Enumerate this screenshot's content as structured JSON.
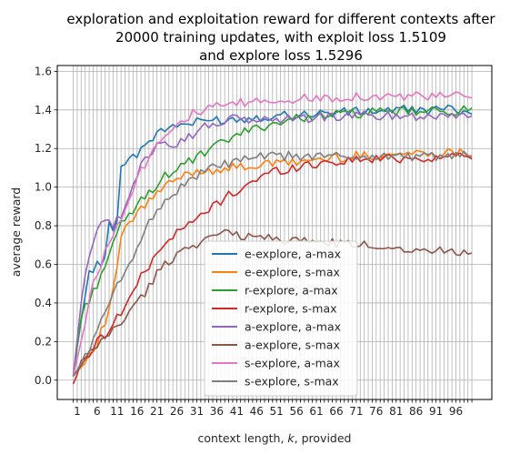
{
  "chart_data": {
    "type": "line",
    "title_lines": [
      "exploration and exploitation reward for different contexts after",
      "20000 training updates, with exploit loss 1.5109",
      "and explore loss 1.5296"
    ],
    "xlabel": "context length, k, provided",
    "ylabel": "average reward",
    "xlim": [
      -4,
      105
    ],
    "ylim": [
      -0.1,
      1.63
    ],
    "x_ticks": [
      "1",
      "6",
      "11",
      "16",
      "21",
      "26",
      "31",
      "36",
      "41",
      "46",
      "51",
      "56",
      "61",
      "66",
      "71",
      "76",
      "81",
      "86",
      "91",
      "96"
    ],
    "y_ticks": [
      "0.0",
      "0.2",
      "0.4",
      "0.6",
      "0.8",
      "1.0",
      "1.2",
      "1.4",
      "1.6"
    ],
    "grid": true,
    "legend_position": "lower center",
    "series_anchors_note": "x 0..100, values interpolated between anchors",
    "series": [
      {
        "name": "e-explore, a-max",
        "color": "#1f77b4",
        "anchors": [
          [
            0,
            0.02
          ],
          [
            2,
            0.33
          ],
          [
            4,
            0.55
          ],
          [
            6,
            0.6
          ],
          [
            8,
            0.62
          ],
          [
            9,
            0.83
          ],
          [
            10,
            0.76
          ],
          [
            11,
            0.85
          ],
          [
            12,
            1.12
          ],
          [
            13,
            1.11
          ],
          [
            14,
            1.15
          ],
          [
            15,
            1.19
          ],
          [
            16,
            1.16
          ],
          [
            17,
            1.2
          ],
          [
            20,
            1.26
          ],
          [
            25,
            1.32
          ],
          [
            30,
            1.33
          ],
          [
            35,
            1.35
          ],
          [
            40,
            1.35
          ],
          [
            50,
            1.37
          ],
          [
            60,
            1.38
          ],
          [
            70,
            1.39
          ],
          [
            80,
            1.4
          ],
          [
            90,
            1.4
          ],
          [
            100,
            1.4
          ]
        ]
      },
      {
        "name": "e-explore, s-max",
        "color": "#ff7f0e",
        "anchors": [
          [
            0,
            0.02
          ],
          [
            3,
            0.1
          ],
          [
            6,
            0.2
          ],
          [
            8,
            0.3
          ],
          [
            10,
            0.45
          ],
          [
            11,
            0.6
          ],
          [
            12,
            0.74
          ],
          [
            14,
            0.8
          ],
          [
            16,
            0.87
          ],
          [
            18,
            0.9
          ],
          [
            20,
            0.95
          ],
          [
            23,
            1.0
          ],
          [
            26,
            1.04
          ],
          [
            30,
            1.08
          ],
          [
            35,
            1.09
          ],
          [
            40,
            1.1
          ],
          [
            50,
            1.12
          ],
          [
            60,
            1.14
          ],
          [
            70,
            1.16
          ],
          [
            80,
            1.17
          ],
          [
            90,
            1.18
          ],
          [
            100,
            1.18
          ]
        ]
      },
      {
        "name": "r-explore, a-max",
        "color": "#2ca02c",
        "anchors": [
          [
            0,
            0.02
          ],
          [
            2,
            0.33
          ],
          [
            4,
            0.42
          ],
          [
            6,
            0.5
          ],
          [
            8,
            0.6
          ],
          [
            10,
            0.7
          ],
          [
            12,
            0.8
          ],
          [
            15,
            0.88
          ],
          [
            18,
            0.95
          ],
          [
            22,
            1.04
          ],
          [
            26,
            1.1
          ],
          [
            30,
            1.14
          ],
          [
            35,
            1.2
          ],
          [
            40,
            1.26
          ],
          [
            45,
            1.3
          ],
          [
            50,
            1.33
          ],
          [
            60,
            1.37
          ],
          [
            70,
            1.38
          ],
          [
            80,
            1.39
          ],
          [
            90,
            1.39
          ],
          [
            100,
            1.4
          ]
        ]
      },
      {
        "name": "r-explore, s-max",
        "color": "#d62728",
        "anchors": [
          [
            0,
            -0.02
          ],
          [
            2,
            0.08
          ],
          [
            4,
            0.14
          ],
          [
            6,
            0.2
          ],
          [
            8,
            0.24
          ],
          [
            10,
            0.3
          ],
          [
            12,
            0.35
          ],
          [
            14,
            0.42
          ],
          [
            16,
            0.5
          ],
          [
            18,
            0.56
          ],
          [
            20,
            0.62
          ],
          [
            22,
            0.7
          ],
          [
            26,
            0.76
          ],
          [
            30,
            0.82
          ],
          [
            35,
            0.9
          ],
          [
            40,
            0.97
          ],
          [
            45,
            1.03
          ],
          [
            50,
            1.08
          ],
          [
            55,
            1.1
          ],
          [
            60,
            1.12
          ],
          [
            70,
            1.14
          ],
          [
            80,
            1.15
          ],
          [
            90,
            1.15
          ],
          [
            100,
            1.17
          ]
        ]
      },
      {
        "name": "a-explore, a-max",
        "color": "#9467bd",
        "anchors": [
          [
            0,
            0.02
          ],
          [
            2,
            0.4
          ],
          [
            4,
            0.65
          ],
          [
            6,
            0.8
          ],
          [
            8,
            0.85
          ],
          [
            10,
            0.8
          ],
          [
            12,
            0.85
          ],
          [
            14,
            0.95
          ],
          [
            16,
            1.05
          ],
          [
            18,
            1.15
          ],
          [
            20,
            1.2
          ],
          [
            22,
            1.25
          ],
          [
            25,
            1.22
          ],
          [
            28,
            1.25
          ],
          [
            32,
            1.3
          ],
          [
            35,
            1.33
          ],
          [
            40,
            1.35
          ],
          [
            50,
            1.35
          ],
          [
            60,
            1.36
          ],
          [
            70,
            1.37
          ],
          [
            80,
            1.37
          ],
          [
            90,
            1.37
          ],
          [
            100,
            1.38
          ]
        ]
      },
      {
        "name": "a-explore, s-max",
        "color": "#8c564b",
        "anchors": [
          [
            0,
            0.02
          ],
          [
            3,
            0.1
          ],
          [
            6,
            0.18
          ],
          [
            9,
            0.24
          ],
          [
            12,
            0.3
          ],
          [
            15,
            0.38
          ],
          [
            18,
            0.45
          ],
          [
            21,
            0.55
          ],
          [
            24,
            0.62
          ],
          [
            28,
            0.68
          ],
          [
            32,
            0.72
          ],
          [
            36,
            0.75
          ],
          [
            40,
            0.76
          ],
          [
            45,
            0.74
          ],
          [
            50,
            0.74
          ],
          [
            55,
            0.72
          ],
          [
            60,
            0.72
          ],
          [
            65,
            0.71
          ],
          [
            70,
            0.7
          ],
          [
            75,
            0.7
          ],
          [
            80,
            0.69
          ],
          [
            85,
            0.68
          ],
          [
            90,
            0.67
          ],
          [
            95,
            0.67
          ],
          [
            100,
            0.67
          ]
        ]
      },
      {
        "name": "s-explore, a-max",
        "color": "#e377c2",
        "anchors": [
          [
            0,
            0.02
          ],
          [
            2,
            0.2
          ],
          [
            4,
            0.42
          ],
          [
            6,
            0.56
          ],
          [
            8,
            0.66
          ],
          [
            10,
            0.75
          ],
          [
            12,
            0.85
          ],
          [
            14,
            0.95
          ],
          [
            16,
            1.05
          ],
          [
            18,
            1.12
          ],
          [
            20,
            1.2
          ],
          [
            23,
            1.28
          ],
          [
            26,
            1.33
          ],
          [
            30,
            1.38
          ],
          [
            35,
            1.41
          ],
          [
            40,
            1.43
          ],
          [
            50,
            1.45
          ],
          [
            60,
            1.46
          ],
          [
            70,
            1.47
          ],
          [
            80,
            1.47
          ],
          [
            90,
            1.47
          ],
          [
            100,
            1.47
          ]
        ]
      },
      {
        "name": "s-explore, s-max",
        "color": "#7f7f7f",
        "anchors": [
          [
            0,
            0.02
          ],
          [
            3,
            0.12
          ],
          [
            6,
            0.25
          ],
          [
            9,
            0.4
          ],
          [
            12,
            0.52
          ],
          [
            15,
            0.65
          ],
          [
            18,
            0.78
          ],
          [
            21,
            0.88
          ],
          [
            24,
            0.95
          ],
          [
            27,
            1.0
          ],
          [
            30,
            1.05
          ],
          [
            35,
            1.1
          ],
          [
            40,
            1.13
          ],
          [
            45,
            1.15
          ],
          [
            50,
            1.16
          ],
          [
            60,
            1.16
          ],
          [
            70,
            1.16
          ],
          [
            80,
            1.16
          ],
          [
            90,
            1.16
          ],
          [
            100,
            1.16
          ]
        ]
      }
    ]
  }
}
